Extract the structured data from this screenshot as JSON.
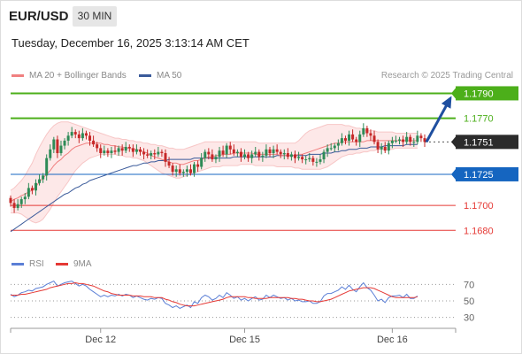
{
  "header": {
    "symbol": "EUR/USD",
    "timeframe": "30 MIN",
    "datetime": "Tuesday, December 16, 2025 3:13:14 AM CET",
    "copyright": "Research © 2025 Trading Central"
  },
  "legend": {
    "ma20_label": "MA 20 + Bollinger Bands",
    "ma50_label": "MA 50",
    "rsi_label": "RSI",
    "rsi_ma_label": "9MA"
  },
  "colors": {
    "ma20": "#f08080",
    "ma50": "#3a5a9a",
    "bull_candle": "#2e8b57",
    "bear_candle": "#c62828",
    "resistance": "#4caf1a",
    "support_blue": "#1565c0",
    "support_red": "#e53935",
    "current_price": "#2b2b2b",
    "rsi_line": "#5b7fd6",
    "rsi_ma_line": "#e53935",
    "band_fill": "#fde4e4"
  },
  "chart_data": [
    {
      "type": "candlestick",
      "title": "",
      "symbol": "EUR/USD",
      "timeframe": "30 MIN",
      "ylim": [
        1.1666,
        1.1796
      ],
      "x_tick_labels": [
        "Dec 12",
        "Dec 15",
        "Dec 16"
      ],
      "x_tick_index": [
        25,
        65,
        106
      ],
      "levels": [
        {
          "label": "1.1790",
          "value": 1.179,
          "kind": "resistance",
          "style": "solid",
          "tag": "green"
        },
        {
          "label": "1.1770",
          "value": 1.177,
          "kind": "resistance",
          "style": "solid",
          "tag": "none"
        },
        {
          "label": "1.1751",
          "value": 1.1751,
          "kind": "current",
          "style": "dotted",
          "tag": "dark"
        },
        {
          "label": "1.1725",
          "value": 1.1725,
          "kind": "support",
          "style": "solid",
          "tag": "blue"
        },
        {
          "label": "1.1700",
          "value": 1.17,
          "kind": "support",
          "style": "solid",
          "tag": "none"
        },
        {
          "label": "1.1680",
          "value": 1.168,
          "kind": "support",
          "style": "solid",
          "tag": "none"
        }
      ],
      "forecast_arrow": {
        "from": 1.1751,
        "to": 1.1786
      },
      "close": [
        1.1702,
        1.1698,
        1.1701,
        1.1705,
        1.1707,
        1.1714,
        1.1712,
        1.1718,
        1.1721,
        1.1724,
        1.1738,
        1.1745,
        1.1753,
        1.1742,
        1.1748,
        1.1752,
        1.1756,
        1.1759,
        1.1757,
        1.1754,
        1.1758,
        1.1756,
        1.1752,
        1.1749,
        1.1746,
        1.1742,
        1.1744,
        1.1742,
        1.1744,
        1.1743,
        1.1746,
        1.1744,
        1.1747,
        1.1746,
        1.1743,
        1.1745,
        1.1743,
        1.1741,
        1.174,
        1.1742,
        1.1741,
        1.1743,
        1.1742,
        1.1735,
        1.1732,
        1.1727,
        1.1729,
        1.1726,
        1.1727,
        1.1729,
        1.1726,
        1.1733,
        1.1731,
        1.1738,
        1.1743,
        1.1741,
        1.1737,
        1.1739,
        1.1744,
        1.1741,
        1.1748,
        1.1745,
        1.1742,
        1.1743,
        1.1739,
        1.1741,
        1.1738,
        1.1741,
        1.1743,
        1.1739,
        1.174,
        1.1745,
        1.1742,
        1.1745,
        1.1743,
        1.1741,
        1.1742,
        1.1739,
        1.1741,
        1.1738,
        1.1739,
        1.1737,
        1.1737,
        1.1738,
        1.1735,
        1.1735,
        1.1737,
        1.1743,
        1.1746,
        1.1746,
        1.1748,
        1.175,
        1.1754,
        1.1752,
        1.1757,
        1.1753,
        1.1751,
        1.1757,
        1.1762,
        1.1758,
        1.1756,
        1.1751,
        1.1745,
        1.1747,
        1.1744,
        1.175,
        1.1752,
        1.1752,
        1.1753,
        1.1751,
        1.1755,
        1.1751,
        1.1751,
        1.1756,
        1.1754,
        1.1751
      ],
      "ma20": [
        1.1703,
        1.1705,
        1.1706,
        1.1708,
        1.1709,
        1.1711,
        1.1712,
        1.1715,
        1.1719,
        1.1722,
        1.1725,
        1.1728,
        1.1732,
        1.1735,
        1.1737,
        1.174,
        1.1742,
        1.1745,
        1.1747,
        1.1748,
        1.1749,
        1.175,
        1.175,
        1.175,
        1.175,
        1.175,
        1.1749,
        1.1749,
        1.1748,
        1.1748,
        1.1747,
        1.1747,
        1.1746,
        1.1746,
        1.1745,
        1.1745,
        1.1744,
        1.1743,
        1.1742,
        1.174,
        1.1739,
        1.1738,
        1.1737,
        1.1736,
        1.1735,
        1.1734,
        1.1734,
        1.1733,
        1.1733,
        1.1734,
        1.1735,
        1.1736,
        1.1736,
        1.1737,
        1.1738,
        1.1739,
        1.1739,
        1.174,
        1.174,
        1.1741,
        1.1741,
        1.1741,
        1.1742,
        1.1742,
        1.1742,
        1.1742,
        1.1742,
        1.1742,
        1.1741,
        1.1741,
        1.1741,
        1.1741,
        1.1741,
        1.1741,
        1.1741,
        1.174,
        1.174,
        1.174,
        1.174,
        1.174,
        1.1741,
        1.1741,
        1.1742,
        1.1743,
        1.1744,
        1.1745,
        1.1746,
        1.1747,
        1.1748,
        1.1749,
        1.175,
        1.175,
        1.1751,
        1.1751,
        1.1751,
        1.1751,
        1.1751,
        1.1751,
        1.1751,
        1.1752,
        1.1752,
        1.1752,
        1.1752,
        1.1752,
        1.1752,
        1.1752,
        1.1752,
        1.1752,
        1.1752,
        1.1752,
        1.1752,
        1.1752,
        1.1752,
        1.1752
      ],
      "bb_upper": [
        1.1712,
        1.1714,
        1.1717,
        1.172,
        1.1724,
        1.1729,
        1.1734,
        1.1741,
        1.1747,
        1.1752,
        1.1757,
        1.1761,
        1.1764,
        1.1766,
        1.1767,
        1.1767,
        1.1767,
        1.1766,
        1.1765,
        1.1764,
        1.1763,
        1.1762,
        1.1761,
        1.176,
        1.1759,
        1.1758,
        1.1757,
        1.1756,
        1.1755,
        1.1754,
        1.1754,
        1.1753,
        1.1753,
        1.1752,
        1.1752,
        1.1751,
        1.1751,
        1.175,
        1.175,
        1.1749,
        1.1749,
        1.1748,
        1.1748,
        1.1747,
        1.1746,
        1.1746,
        1.1745,
        1.1745,
        1.1745,
        1.1746,
        1.1747,
        1.1748,
        1.1749,
        1.175,
        1.1751,
        1.1751,
        1.1751,
        1.1751,
        1.1751,
        1.1751,
        1.1751,
        1.1751,
        1.1751,
        1.1751,
        1.1751,
        1.1751,
        1.1751,
        1.1751,
        1.1751,
        1.175,
        1.175,
        1.175,
        1.175,
        1.175,
        1.175,
        1.175,
        1.175,
        1.175,
        1.175,
        1.175,
        1.1752,
        1.1755,
        1.1758,
        1.176,
        1.1761,
        1.1762,
        1.1763,
        1.1764,
        1.1765,
        1.1765,
        1.1765,
        1.1765,
        1.1765,
        1.1764,
        1.1764,
        1.1763,
        1.1762,
        1.1762,
        1.1761,
        1.176,
        1.176,
        1.176,
        1.1759,
        1.1759,
        1.1759,
        1.1759,
        1.1759,
        1.1758,
        1.1758,
        1.1758,
        1.1758,
        1.1758,
        1.1758,
        1.1758
      ],
      "bb_lower": [
        1.1694,
        1.1694,
        1.1694,
        1.1693,
        1.1691,
        1.1689,
        1.1687,
        1.1686,
        1.1687,
        1.1689,
        1.1693,
        1.1697,
        1.1702,
        1.1707,
        1.1711,
        1.1715,
        1.1719,
        1.1724,
        1.1728,
        1.1731,
        1.1734,
        1.1736,
        1.1738,
        1.1739,
        1.174,
        1.1741,
        1.1741,
        1.1741,
        1.1741,
        1.1741,
        1.174,
        1.174,
        1.1739,
        1.1739,
        1.1738,
        1.1738,
        1.1737,
        1.1736,
        1.1734,
        1.1732,
        1.173,
        1.1728,
        1.1726,
        1.1725,
        1.1724,
        1.1723,
        1.1722,
        1.1722,
        1.1723,
        1.1724,
        1.1725,
        1.1726,
        1.1727,
        1.1728,
        1.1729,
        1.173,
        1.1731,
        1.1731,
        1.1731,
        1.1732,
        1.1732,
        1.1732,
        1.1732,
        1.1732,
        1.1733,
        1.1733,
        1.1733,
        1.1733,
        1.1732,
        1.1732,
        1.1732,
        1.1732,
        1.1732,
        1.1732,
        1.1731,
        1.1731,
        1.1731,
        1.1731,
        1.1731,
        1.173,
        1.173,
        1.1729,
        1.1729,
        1.1729,
        1.1729,
        1.1729,
        1.1729,
        1.173,
        1.1731,
        1.1733,
        1.1735,
        1.1737,
        1.1739,
        1.174,
        1.1741,
        1.1741,
        1.1742,
        1.1742,
        1.1743,
        1.1743,
        1.1744,
        1.1744,
        1.1745,
        1.1745,
        1.1745,
        1.1745,
        1.1745,
        1.1746,
        1.1746,
        1.1746,
        1.1746,
        1.1746,
        1.1746,
        1.1746
      ],
      "ma50": [
        1.1679,
        1.1681,
        1.1683,
        1.1685,
        1.1687,
        1.1689,
        1.1691,
        1.1693,
        1.1695,
        1.1697,
        1.1699,
        1.1701,
        1.1703,
        1.1705,
        1.1707,
        1.1709,
        1.171,
        1.1712,
        1.1714,
        1.1715,
        1.1717,
        1.1718,
        1.172,
        1.1721,
        1.1722,
        1.1723,
        1.1724,
        1.1725,
        1.1726,
        1.1727,
        1.1728,
        1.1729,
        1.173,
        1.1731,
        1.1732,
        1.1732,
        1.1733,
        1.1734,
        1.1734,
        1.1735,
        1.1735,
        1.1736,
        1.1736,
        1.1736,
        1.1737,
        1.1737,
        1.1737,
        1.1737,
        1.1737,
        1.1737,
        1.1737,
        1.1738,
        1.1738,
        1.1738,
        1.1738,
        1.1738,
        1.1738,
        1.1738,
        1.1738,
        1.1738,
        1.1738,
        1.1738,
        1.1739,
        1.1739,
        1.1739,
        1.1739,
        1.1739,
        1.1739,
        1.1739,
        1.1739,
        1.1739,
        1.1739,
        1.1739,
        1.1739,
        1.174,
        1.174,
        1.174,
        1.174,
        1.174,
        1.174,
        1.174,
        1.174,
        1.174,
        1.1741,
        1.1741,
        1.1741,
        1.1741,
        1.1742,
        1.1742,
        1.1742,
        1.1743,
        1.1743,
        1.1744,
        1.1744,
        1.1745,
        1.1745,
        1.1745,
        1.1746,
        1.1746,
        1.1746,
        1.1747,
        1.1747,
        1.1747,
        1.1747,
        1.1748,
        1.1748,
        1.1748,
        1.1748,
        1.1748,
        1.1748,
        1.1749,
        1.1749,
        1.1749,
        1.1749
      ]
    },
    {
      "type": "line",
      "title": "",
      "ylim": [
        20,
        80
      ],
      "y_tick_labels": [
        "70",
        "50",
        "30"
      ],
      "y_ticks": [
        70,
        50,
        30
      ],
      "series": [
        {
          "name": "RSI",
          "values": [
            58,
            55,
            57,
            60,
            61,
            63,
            62,
            65,
            66,
            67,
            70,
            72,
            74,
            68,
            70,
            72,
            73,
            74,
            71,
            68,
            70,
            68,
            64,
            61,
            58,
            55,
            57,
            55,
            57,
            56,
            58,
            56,
            58,
            57,
            54,
            56,
            54,
            52,
            51,
            53,
            52,
            54,
            53,
            47,
            45,
            42,
            44,
            41,
            43,
            45,
            42,
            49,
            47,
            54,
            57,
            55,
            51,
            53,
            57,
            54,
            60,
            57,
            53,
            55,
            51,
            53,
            50,
            53,
            55,
            51,
            52,
            57,
            54,
            57,
            55,
            53,
            54,
            51,
            53,
            50,
            51,
            49,
            49,
            50,
            47,
            47,
            49,
            56,
            59,
            59,
            61,
            63,
            67,
            64,
            69,
            64,
            61,
            67,
            72,
            66,
            63,
            57,
            50,
            52,
            48,
            54,
            56,
            56,
            57,
            54,
            58,
            53,
            53,
            56
          ]
        },
        {
          "name": "9MA",
          "values": [
            57,
            57,
            57,
            58,
            58,
            59,
            60,
            61,
            62,
            63,
            64,
            66,
            67,
            68,
            69,
            70,
            71,
            71,
            72,
            71,
            71,
            70,
            69,
            68,
            66,
            64,
            62,
            61,
            59,
            58,
            57,
            57,
            57,
            57,
            56,
            56,
            56,
            55,
            55,
            55,
            54,
            54,
            54,
            52,
            51,
            49,
            48,
            46,
            45,
            44,
            44,
            44,
            45,
            46,
            47,
            48,
            49,
            50,
            51,
            52,
            54,
            55,
            55,
            55,
            55,
            55,
            54,
            54,
            53,
            53,
            53,
            53,
            54,
            54,
            54,
            54,
            54,
            54,
            53,
            53,
            52,
            52,
            51,
            50,
            50,
            49,
            49,
            50,
            51,
            52,
            54,
            56,
            58,
            60,
            62,
            63,
            64,
            65,
            66,
            66,
            66,
            65,
            63,
            61,
            59,
            57,
            55,
            54,
            54,
            54,
            54,
            54,
            54,
            55
          ]
        }
      ]
    }
  ]
}
